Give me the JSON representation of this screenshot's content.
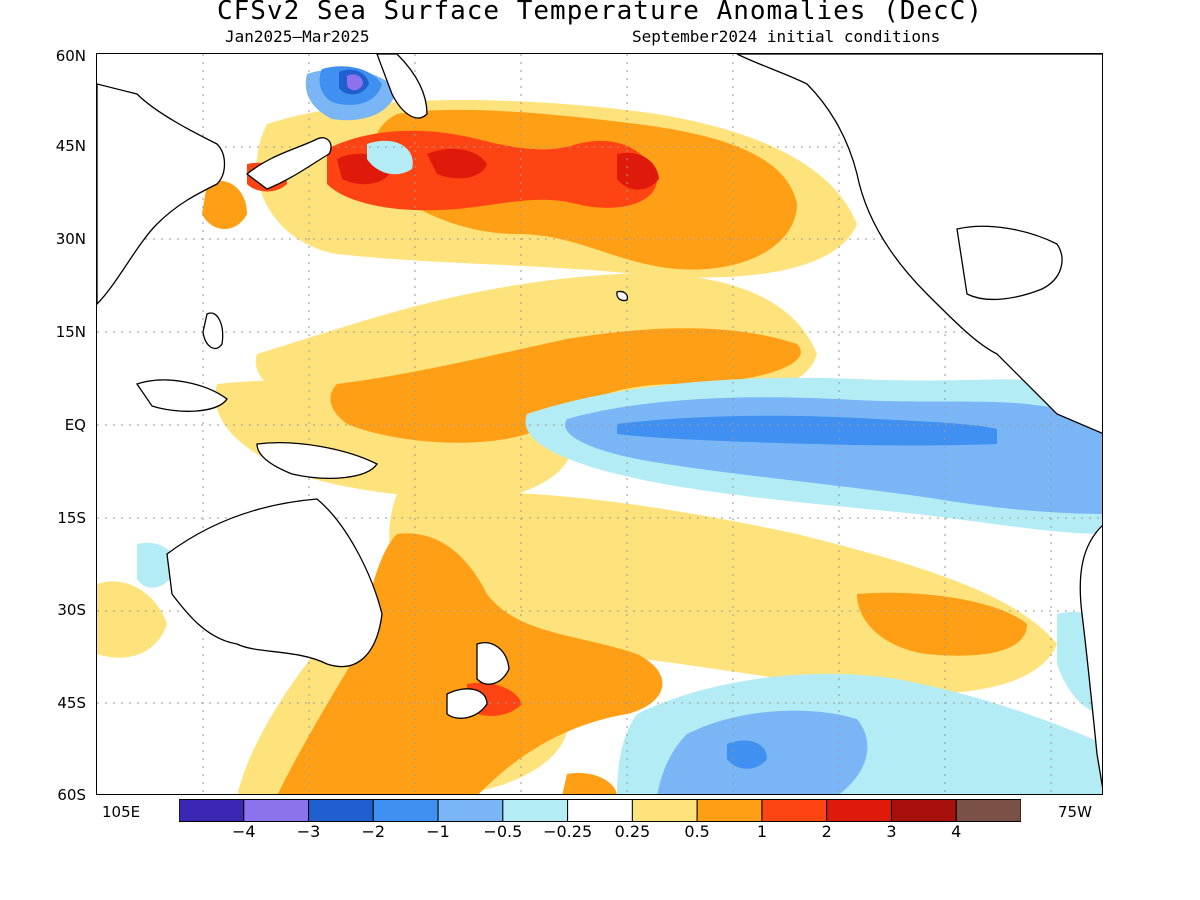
{
  "title": "CFSv2 Sea Surface Temperature Anomalies (DecC)",
  "subtitle_left": "Jan2025–Mar2025",
  "subtitle_right": "September2024 initial conditions",
  "lat_labels": [
    "60N",
    "45N",
    "30N",
    "15N",
    "EQ",
    "15S",
    "30S",
    "45S",
    "60S"
  ],
  "lon_left": "105E",
  "lon_right": "75W",
  "colorbar": {
    "colors": [
      "#3a27b3",
      "#8d72ee",
      "#1f5fd0",
      "#3f90f0",
      "#7ab6f5",
      "#b4ecf5",
      "#ffffff",
      "#fee37c",
      "#ff9f15",
      "#ff4413",
      "#e01a0a",
      "#a5100b",
      "#7b5147"
    ],
    "labels": [
      "−4",
      "−3",
      "−2",
      "−1",
      "−0.5",
      "−0.25",
      "0.25",
      "0.5",
      "1",
      "2",
      "3",
      "4"
    ]
  },
  "colors": {
    "strong_cool": "#3f90f0",
    "cool": "#7ab6f5",
    "weak_cool": "#b4ecf5",
    "weak_warm": "#fee37c",
    "warm": "#ff9f15",
    "strong_warm": "#ff4413",
    "very_warm": "#e01a0a",
    "coast": "#000000",
    "grid": "#9a9a9a"
  }
}
